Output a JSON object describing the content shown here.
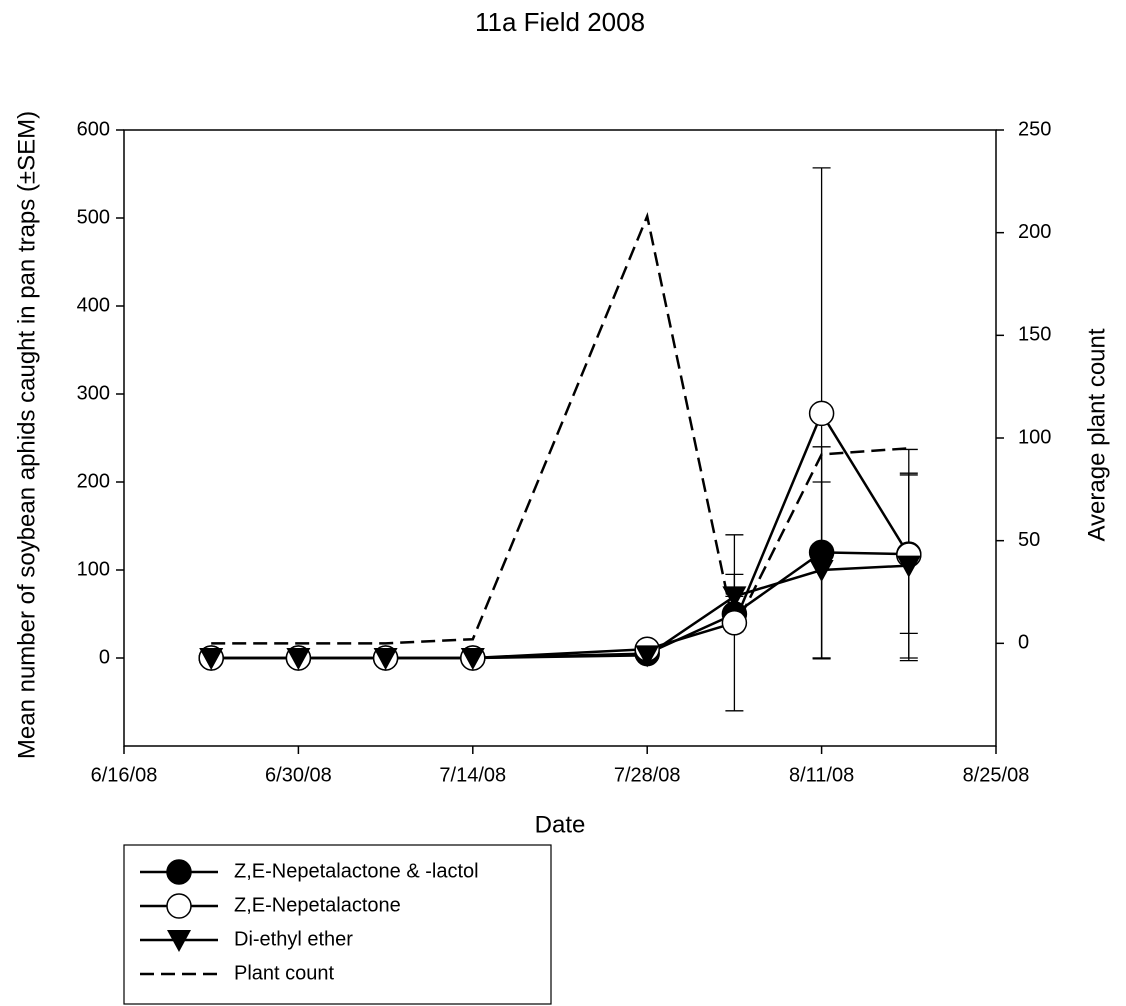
{
  "chart_data": {
    "type": "line",
    "title": "11a Field 2008",
    "x_label": "Date",
    "y_label": "Mean number of soybean aphids caught in pan traps (±SEM)",
    "y2_label": "Average plant count",
    "x": [
      "6/23/08",
      "6/30/08",
      "7/7/08",
      "7/14/08",
      "7/28/08",
      "8/4/08",
      "8/11/08",
      "8/18/08"
    ],
    "xlim": [
      "6/16/08",
      "8/25/08"
    ],
    "xticks": [
      "6/16/08",
      "6/30/08",
      "7/14/08",
      "7/28/08",
      "8/11/08",
      "8/25/08"
    ],
    "ylim": [
      -100,
      600
    ],
    "yticks": [
      0,
      100,
      200,
      300,
      400,
      500,
      600
    ],
    "y2lim": [
      -50,
      250
    ],
    "y2ticks": [
      0,
      50,
      100,
      150,
      200,
      250
    ],
    "series": [
      {
        "name": "Z,E-Nepetalactone & -lactol",
        "color": "#000000",
        "marker": "filled-circle",
        "values": [
          0,
          0,
          0,
          0,
          5,
          50,
          120,
          118
        ],
        "errors": [
          0,
          0,
          0,
          0,
          0,
          20,
          120,
          90
        ]
      },
      {
        "name": "Z,E-Nepetalactone",
        "color": "#000000",
        "marker": "open-circle",
        "values": [
          0,
          0,
          0,
          0,
          10,
          40,
          278,
          117
        ],
        "errors": [
          0,
          0,
          0,
          0,
          0,
          100,
          279,
          120
        ]
      },
      {
        "name": "Di-ethyl ether",
        "color": "#000000",
        "marker": "triangle",
        "values": [
          0,
          0,
          0,
          0,
          3,
          70,
          100,
          105
        ],
        "errors": [
          0,
          0,
          0,
          0,
          0,
          25,
          100,
          105
        ]
      },
      {
        "name": "Plant count",
        "color": "#000000",
        "marker": "dashed",
        "axis": "y2",
        "values": [
          0,
          0,
          0,
          2,
          208,
          7,
          92,
          95
        ]
      }
    ]
  }
}
